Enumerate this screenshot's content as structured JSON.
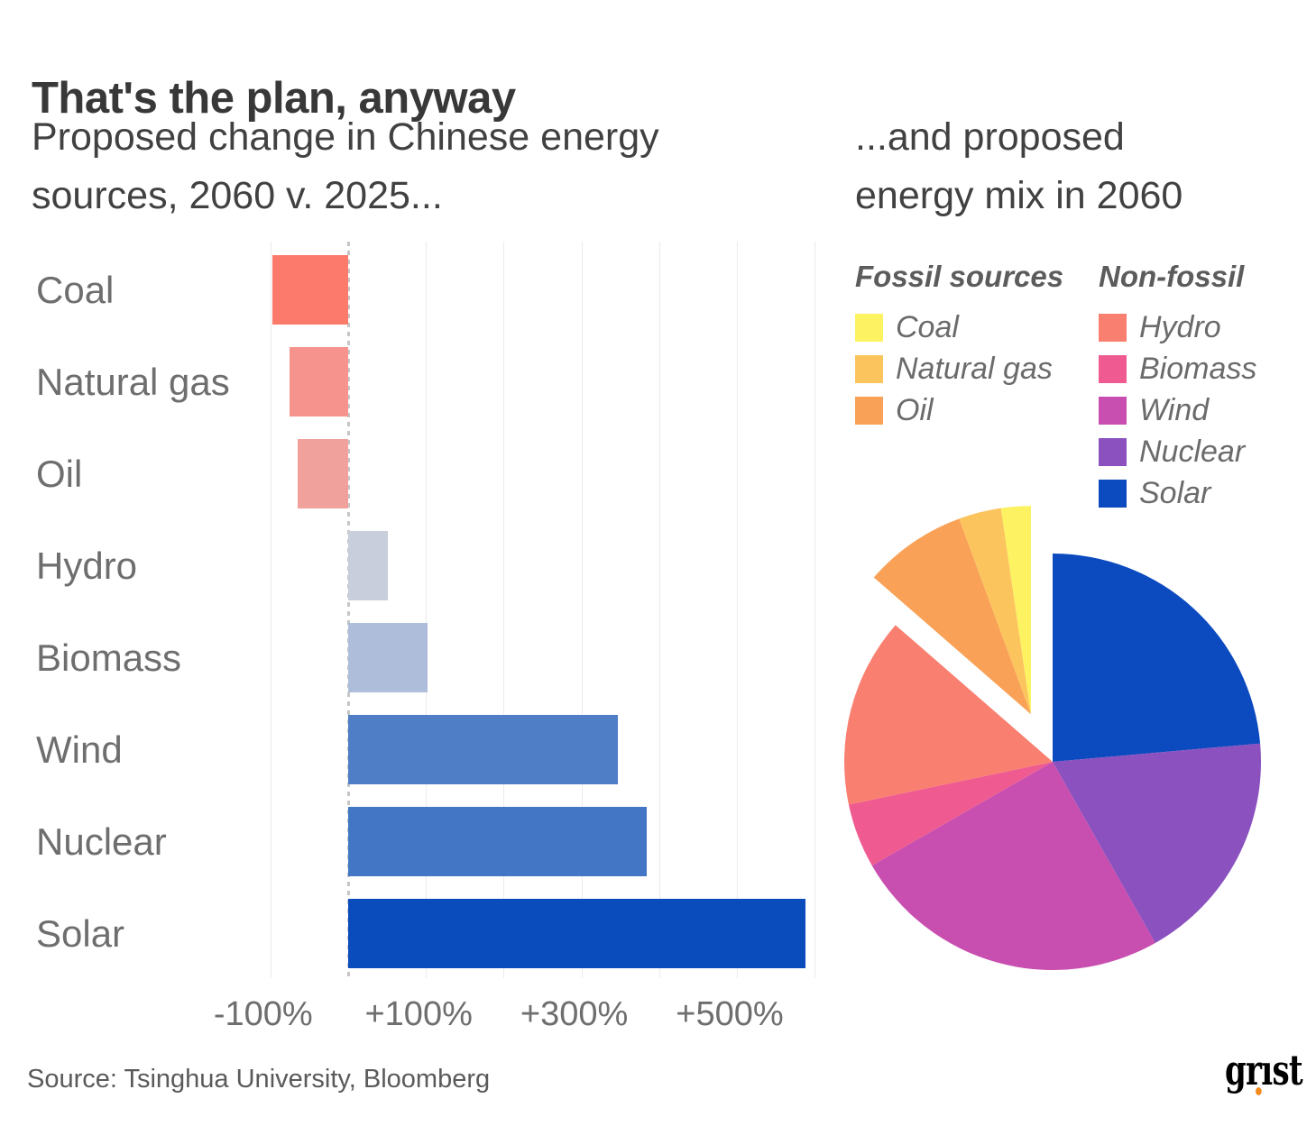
{
  "header": {
    "title": "That's the plan, anyway",
    "subtitle_left": [
      "Proposed change in Chinese energy",
      "sources, 2060 v. 2025..."
    ],
    "subtitle_right": [
      "...and proposed",
      "energy mix in 2060"
    ]
  },
  "legend": {
    "fossil": {
      "title": "Fossil sources",
      "items": [
        {
          "label": "Coal",
          "color": "#FCF262"
        },
        {
          "label": "Natural gas",
          "color": "#FBC45D"
        },
        {
          "label": "Oil",
          "color": "#F9A156"
        }
      ]
    },
    "nonfossil": {
      "title": "Non-fossil",
      "items": [
        {
          "label": "Hydro",
          "color": "#F97F70"
        },
        {
          "label": "Biomass",
          "color": "#EF5B90"
        },
        {
          "label": "Wind",
          "color": "#C84FAF"
        },
        {
          "label": "Nuclear",
          "color": "#8A51BF"
        },
        {
          "label": "Solar",
          "color": "#0B4ABF"
        }
      ]
    }
  },
  "footer": {
    "source": "Source: Tsinghua University, Bloomberg",
    "logo_text": "grist",
    "logo_dot_color": "#F68A1E"
  },
  "chart_data": [
    {
      "type": "bar",
      "orientation": "horizontal",
      "title": "Proposed change in Chinese energy sources, 2060 v. 2025",
      "categories": [
        "Coal",
        "Natural gas",
        "Oil",
        "Hydro",
        "Biomass",
        "Wind",
        "Nuclear",
        "Solar"
      ],
      "values": [
        -97,
        -75,
        -65,
        51,
        102,
        347,
        384,
        588
      ],
      "unit": "%",
      "colors": [
        "#FC7A6B",
        "#F6938C",
        "#F0A19B",
        "#C8CEDB",
        "#AEBDD9",
        "#4F7EC6",
        "#4376C4",
        "#0A4CBC"
      ],
      "xlim": [
        -160,
        610
      ],
      "grid_interval": 100,
      "grid_on": true,
      "zero_line": "dotted",
      "axis_ticks": [
        {
          "value": -100,
          "label": "-100%"
        },
        {
          "value": 100,
          "label": "+100%"
        },
        {
          "value": 300,
          "label": "+300%"
        },
        {
          "value": 500,
          "label": "+500%"
        }
      ]
    },
    {
      "type": "pie",
      "title": "Proposed energy mix in 2060",
      "start_angle_deg": 0,
      "clockwise": true,
      "legend_position": "top",
      "slices": [
        {
          "label": "Solar",
          "value": 23.6,
          "color": "#0B4ABF",
          "exploded": false
        },
        {
          "label": "Nuclear",
          "value": 18.2,
          "color": "#8A51BF",
          "exploded": false
        },
        {
          "label": "Wind",
          "value": 24.9,
          "color": "#C84FAF",
          "exploded": false
        },
        {
          "label": "Biomass",
          "value": 5.0,
          "color": "#EF5B90",
          "exploded": false
        },
        {
          "label": "Hydro",
          "value": 14.7,
          "color": "#F97F70",
          "exploded": false
        },
        {
          "label": "Oil",
          "value": 8.0,
          "color": "#F9A156",
          "exploded": true
        },
        {
          "label": "Natural gas",
          "value": 3.3,
          "color": "#FBC45D",
          "exploded": true
        },
        {
          "label": "Coal",
          "value": 2.3,
          "color": "#FCF262",
          "exploded": true
        }
      ]
    }
  ]
}
